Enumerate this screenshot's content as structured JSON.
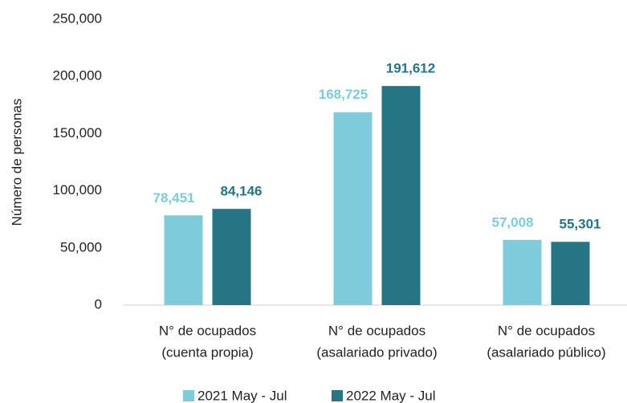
{
  "chart_data": {
    "type": "bar",
    "y_label": "Número de personas",
    "categories": [
      [
        "N° de ocupados",
        "(cuenta propia)"
      ],
      [
        "N° de ocupados",
        "(asalariado privado)"
      ],
      [
        "N° de ocupados",
        "(asalariado público)"
      ]
    ],
    "series": [
      {
        "name": "2021 May - Jul",
        "color": "#7ecbdc",
        "values": [
          78451,
          168725,
          57008
        ],
        "value_labels": [
          "78,451",
          "168,725",
          "57,008"
        ]
      },
      {
        "name": "2022 May - Jul",
        "color": "#267585",
        "values": [
          84146,
          191612,
          55301
        ],
        "value_labels": [
          "84,146",
          "191,612",
          "55,301"
        ]
      }
    ],
    "ylim": [
      0,
      250000
    ],
    "yticks": [
      0,
      {
        "value": 50000,
        "label": "50,000"
      },
      {
        "value": 100000,
        "label": "100,000"
      },
      {
        "value": 150000,
        "label": "150,000"
      },
      {
        "value": 200000,
        "label": "200,000"
      },
      {
        "value": 250000,
        "label": "250,000"
      }
    ],
    "grid": false,
    "legend": "bottom"
  }
}
